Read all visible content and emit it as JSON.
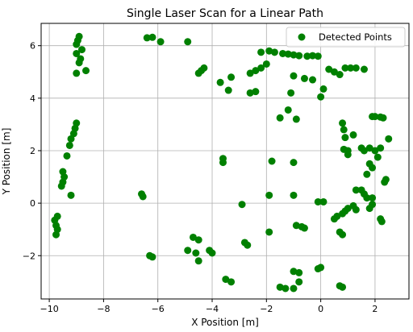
{
  "chart_data": {
    "type": "scatter",
    "title": "Single Laser Scan for a Linear Path",
    "xlabel": "X Position [m]",
    "ylabel": "Y Position [m]",
    "xlim": [
      -10.3,
      3.25
    ],
    "ylim": [
      -3.65,
      6.85
    ],
    "xticks": [
      -10,
      -8,
      -6,
      -4,
      -2,
      0,
      2
    ],
    "yticks": [
      -2,
      0,
      2,
      4,
      6
    ],
    "grid": true,
    "legend_position": "top-right",
    "series": [
      {
        "name": "Detected Points",
        "color": "#008000",
        "points": [
          [
            -8.9,
            6.35
          ],
          [
            -8.95,
            6.2
          ],
          [
            -9.0,
            6.05
          ],
          [
            -8.8,
            5.85
          ],
          [
            -9.0,
            5.7
          ],
          [
            -8.85,
            5.5
          ],
          [
            -8.9,
            5.35
          ],
          [
            -8.65,
            5.05
          ],
          [
            -9.0,
            4.95
          ],
          [
            -6.4,
            6.3
          ],
          [
            -6.2,
            6.32
          ],
          [
            -5.9,
            6.15
          ],
          [
            -4.9,
            6.15
          ],
          [
            -4.5,
            4.95
          ],
          [
            -4.4,
            5.05
          ],
          [
            -4.3,
            5.15
          ],
          [
            -3.7,
            4.6
          ],
          [
            -3.3,
            4.8
          ],
          [
            -3.4,
            4.3
          ],
          [
            -2.6,
            4.95
          ],
          [
            -2.4,
            5.05
          ],
          [
            -2.2,
            5.15
          ],
          [
            -2.0,
            5.3
          ],
          [
            -2.6,
            4.2
          ],
          [
            -2.4,
            4.25
          ],
          [
            -2.2,
            5.75
          ],
          [
            -1.9,
            5.8
          ],
          [
            -1.7,
            5.75
          ],
          [
            -1.4,
            5.7
          ],
          [
            -1.2,
            5.68
          ],
          [
            -1.0,
            5.65
          ],
          [
            -0.8,
            5.62
          ],
          [
            -0.5,
            5.6
          ],
          [
            -0.3,
            5.62
          ],
          [
            -0.1,
            5.6
          ],
          [
            -1.0,
            4.85
          ],
          [
            -0.6,
            4.75
          ],
          [
            -0.3,
            4.7
          ],
          [
            -1.1,
            4.2
          ],
          [
            0.1,
            4.35
          ],
          [
            0.0,
            4.05
          ],
          [
            0.3,
            5.1
          ],
          [
            0.5,
            5.0
          ],
          [
            0.7,
            4.9
          ],
          [
            0.9,
            5.15
          ],
          [
            1.1,
            5.15
          ],
          [
            1.3,
            5.15
          ],
          [
            1.6,
            5.1
          ],
          [
            -1.5,
            3.25
          ],
          [
            -1.2,
            3.55
          ],
          [
            -0.9,
            3.2
          ],
          [
            -9.0,
            3.05
          ],
          [
            -9.05,
            2.85
          ],
          [
            -9.1,
            2.65
          ],
          [
            -9.2,
            2.45
          ],
          [
            -9.25,
            2.2
          ],
          [
            -9.35,
            1.8
          ],
          [
            -9.5,
            1.2
          ],
          [
            -9.45,
            1.0
          ],
          [
            -9.5,
            0.8
          ],
          [
            -9.55,
            0.65
          ],
          [
            -9.2,
            0.3
          ],
          [
            -9.7,
            -0.5
          ],
          [
            -9.8,
            -0.65
          ],
          [
            -9.75,
            -0.85
          ],
          [
            -9.7,
            -1.0
          ],
          [
            -9.75,
            -1.2
          ],
          [
            -6.6,
            0.35
          ],
          [
            -6.55,
            0.25
          ],
          [
            -6.3,
            -2.0
          ],
          [
            -6.2,
            -2.05
          ],
          [
            -3.6,
            1.7
          ],
          [
            -3.6,
            1.55
          ],
          [
            -2.9,
            -0.05
          ],
          [
            -1.8,
            1.6
          ],
          [
            -1.9,
            0.3
          ],
          [
            -1.9,
            -1.1
          ],
          [
            -1.0,
            1.55
          ],
          [
            -1.0,
            0.3
          ],
          [
            -4.7,
            -1.3
          ],
          [
            -4.5,
            -1.4
          ],
          [
            -4.9,
            -1.8
          ],
          [
            -4.6,
            -1.9
          ],
          [
            -4.1,
            -1.8
          ],
          [
            -4.0,
            -1.9
          ],
          [
            -4.5,
            -2.2
          ],
          [
            -2.8,
            -1.5
          ],
          [
            -2.7,
            -1.6
          ],
          [
            -3.5,
            -2.9
          ],
          [
            -3.3,
            -3.0
          ],
          [
            -0.9,
            -0.85
          ],
          [
            -0.7,
            -0.9
          ],
          [
            -0.6,
            -0.95
          ],
          [
            -1.0,
            -2.6
          ],
          [
            -0.8,
            -2.65
          ],
          [
            -1.5,
            -3.2
          ],
          [
            -1.3,
            -3.25
          ],
          [
            -1.0,
            -3.25
          ],
          [
            -0.8,
            -3.0
          ],
          [
            -0.1,
            -2.5
          ],
          [
            0.0,
            -2.45
          ],
          [
            0.7,
            -3.15
          ],
          [
            0.8,
            -3.2
          ],
          [
            -0.1,
            0.05
          ],
          [
            0.1,
            0.05
          ],
          [
            0.5,
            -0.6
          ],
          [
            0.6,
            -0.5
          ],
          [
            0.8,
            -0.4
          ],
          [
            0.9,
            -0.3
          ],
          [
            1.0,
            -0.2
          ],
          [
            1.2,
            -0.1
          ],
          [
            1.3,
            -0.25
          ],
          [
            0.7,
            -1.1
          ],
          [
            0.8,
            -1.2
          ],
          [
            1.8,
            -0.2
          ],
          [
            1.9,
            -0.05
          ],
          [
            2.2,
            -0.6
          ],
          [
            2.25,
            -0.7
          ],
          [
            1.3,
            0.5
          ],
          [
            1.5,
            0.5
          ],
          [
            1.6,
            0.35
          ],
          [
            1.7,
            0.2
          ],
          [
            1.9,
            0.2
          ],
          [
            0.8,
            3.05
          ],
          [
            0.85,
            2.8
          ],
          [
            0.9,
            2.5
          ],
          [
            1.2,
            2.6
          ],
          [
            0.85,
            2.05
          ],
          [
            1.0,
            2.0
          ],
          [
            1.0,
            1.85
          ],
          [
            1.5,
            2.1
          ],
          [
            1.6,
            2.0
          ],
          [
            1.8,
            2.1
          ],
          [
            2.0,
            2.0
          ],
          [
            2.2,
            2.1
          ],
          [
            2.1,
            1.75
          ],
          [
            1.8,
            1.5
          ],
          [
            1.9,
            1.35
          ],
          [
            1.7,
            1.1
          ],
          [
            1.9,
            3.3
          ],
          [
            2.0,
            3.3
          ],
          [
            2.2,
            3.28
          ],
          [
            2.3,
            3.25
          ],
          [
            2.5,
            2.45
          ],
          [
            2.4,
            0.9
          ],
          [
            2.35,
            0.8
          ]
        ]
      }
    ]
  }
}
